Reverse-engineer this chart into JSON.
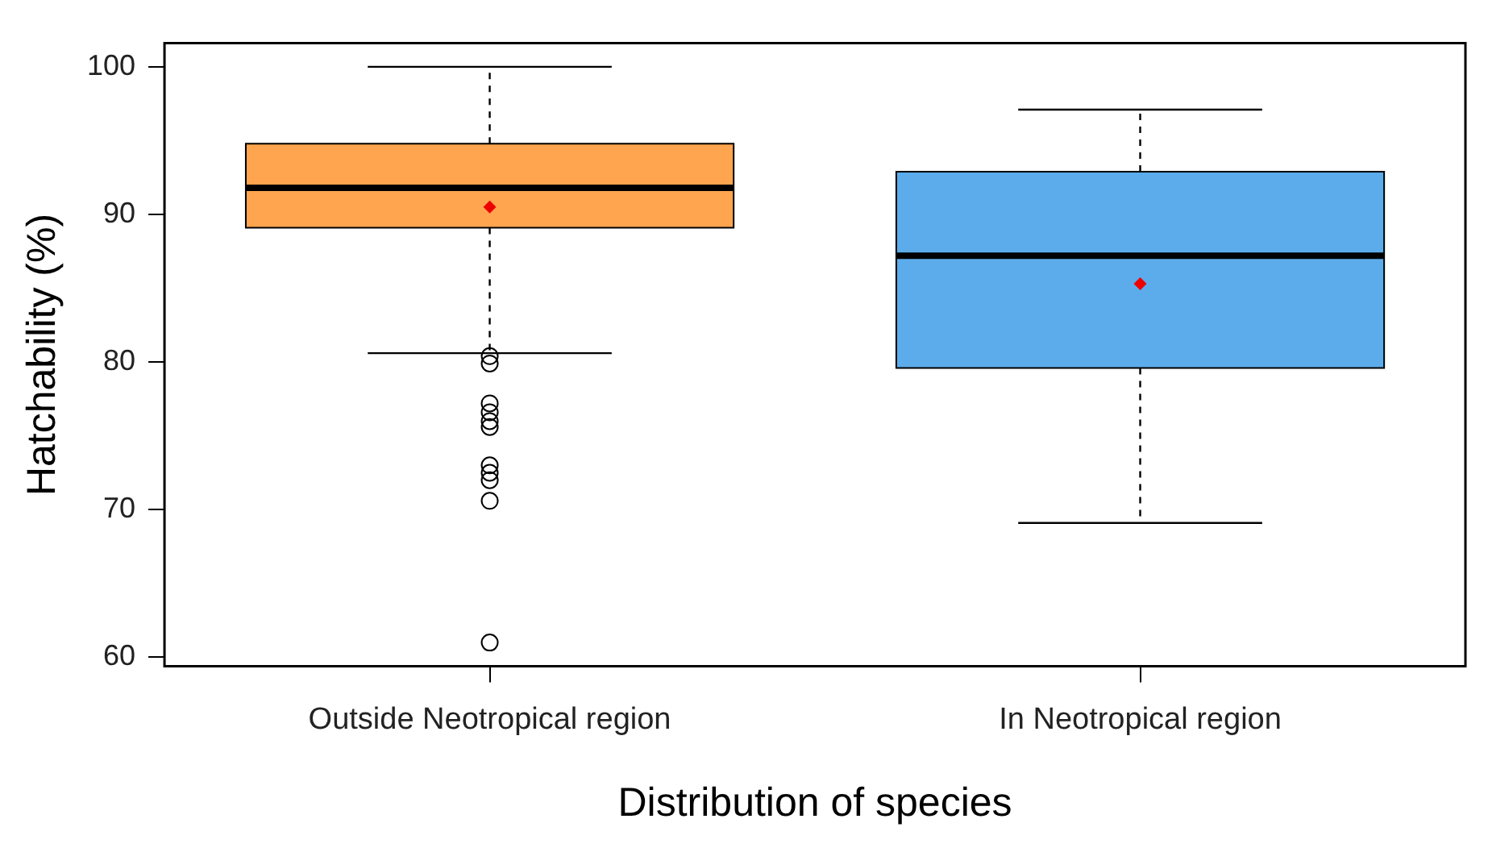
{
  "chart_data": {
    "type": "box",
    "xlabel": "Distribution of species",
    "ylabel": "Hatchability (%)",
    "categories": [
      "Outside Neotropical region",
      "In Neotropical region"
    ],
    "colors": [
      "#ffa54f",
      "#5caceb"
    ],
    "boxes": [
      {
        "low": 80.6,
        "q1": 89.1,
        "median": 91.8,
        "q3": 94.8,
        "high": 100,
        "mean": 90.5,
        "outliers": [
          80.4,
          79.9,
          77.2,
          76.6,
          76.0,
          75.6,
          73.0,
          72.5,
          72.0,
          70.6,
          61.0
        ]
      },
      {
        "low": 69.1,
        "q1": 79.6,
        "median": 87.2,
        "q3": 92.9,
        "high": 97.1,
        "mean": 85.3
      }
    ],
    "ylim": [
      59.4,
      101.6
    ],
    "yticks": [
      60,
      70,
      80,
      90,
      100
    ]
  }
}
